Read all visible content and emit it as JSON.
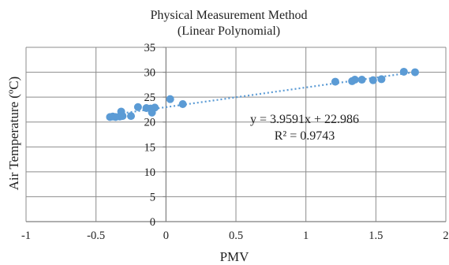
{
  "chart_data": {
    "type": "scatter",
    "title": "Physical Measurement Method",
    "subtitle": "(Linear Polynomial)",
    "xlabel": "PMV",
    "ylabel": "Air Temperature (ºC)",
    "xlim": [
      -1,
      2
    ],
    "ylim": [
      0,
      35
    ],
    "xticks": [
      "-1",
      "-0.5",
      "0",
      "0.5",
      "1",
      "1.5",
      "2"
    ],
    "yticks": [
      "0",
      "5",
      "10",
      "15",
      "20",
      "25",
      "30",
      "35"
    ],
    "grid": true,
    "points": [
      {
        "x": -0.4,
        "y": 21.0
      },
      {
        "x": -0.38,
        "y": 21.1
      },
      {
        "x": -0.36,
        "y": 21.0
      },
      {
        "x": -0.33,
        "y": 21.1
      },
      {
        "x": -0.32,
        "y": 22.1
      },
      {
        "x": -0.31,
        "y": 21.2
      },
      {
        "x": -0.25,
        "y": 21.2
      },
      {
        "x": -0.2,
        "y": 23.0
      },
      {
        "x": -0.14,
        "y": 22.8
      },
      {
        "x": -0.11,
        "y": 22.7
      },
      {
        "x": -0.1,
        "y": 21.9
      },
      {
        "x": -0.08,
        "y": 22.9
      },
      {
        "x": 0.03,
        "y": 24.6
      },
      {
        "x": 0.12,
        "y": 23.6
      },
      {
        "x": 1.21,
        "y": 28.1
      },
      {
        "x": 1.33,
        "y": 28.2
      },
      {
        "x": 1.35,
        "y": 28.5
      },
      {
        "x": 1.4,
        "y": 28.5
      },
      {
        "x": 1.48,
        "y": 28.4
      },
      {
        "x": 1.54,
        "y": 28.6
      },
      {
        "x": 1.7,
        "y": 30.1
      },
      {
        "x": 1.78,
        "y": 30.0
      }
    ],
    "trendline": {
      "type": "linear",
      "slope": 3.9591,
      "intercept": 22.986,
      "x_range": [
        -0.42,
        1.8
      ],
      "equation": "y = 3.9591x + 22.986",
      "r_squared": "R² = 0.9743"
    },
    "colors": {
      "marker": "#5b9bd5",
      "trendline": "#5b9bd5",
      "grid": "#8c8c8c",
      "axis": "#7f7f7f"
    }
  }
}
